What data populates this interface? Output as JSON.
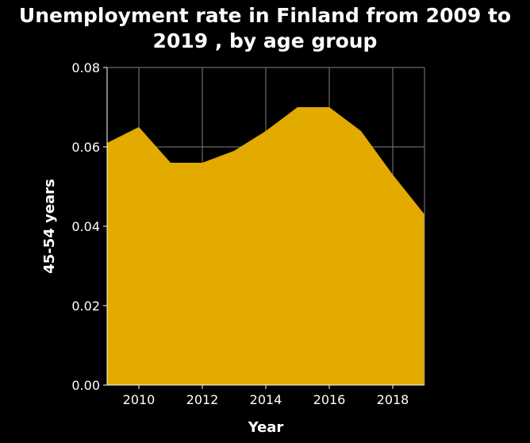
{
  "chart_data": {
    "type": "area",
    "title_line1": "Unemployment rate in Finland from 2009 to",
    "title_line2": "2019 , by age group",
    "xlabel": "Year",
    "ylabel": "45-54 years",
    "x": [
      2009,
      2010,
      2011,
      2012,
      2013,
      2014,
      2015,
      2016,
      2017,
      2018,
      2019
    ],
    "values": [
      0.061,
      0.065,
      0.056,
      0.056,
      0.059,
      0.064,
      0.07,
      0.07,
      0.064,
      0.053,
      0.043
    ],
    "xlim": [
      2009,
      2019
    ],
    "ylim": [
      0,
      0.08
    ],
    "x_ticks": [
      "2010",
      "2012",
      "2014",
      "2016",
      "2018"
    ],
    "y_ticks": [
      "0.00",
      "0.02",
      "0.04",
      "0.06",
      "0.08"
    ],
    "grid": true,
    "fill_color": "#e3aa00",
    "grid_color": "#7f7f7f",
    "background_color": "#000000",
    "text_color": "#ffffff"
  }
}
